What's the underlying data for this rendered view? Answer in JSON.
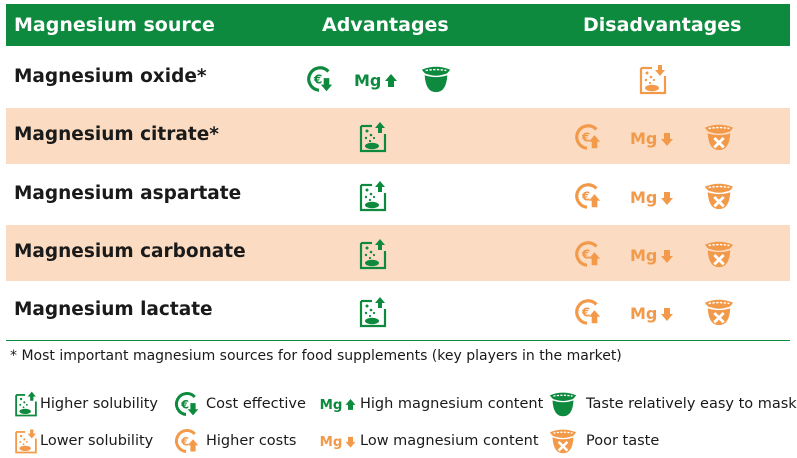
{
  "header": {
    "col_source": "Magnesium source",
    "col_advantages": "Advantages",
    "col_disadvantages": "Disadvantages"
  },
  "rows": [
    {
      "name": "Magnesium oxide*",
      "shaded": false,
      "advantages": [
        "cost-effective",
        "high-magnesium",
        "taste-easy-mask"
      ],
      "disadvantages": [
        "lower-solubility"
      ]
    },
    {
      "name": "Magnesium citrate*",
      "shaded": true,
      "advantages": [
        "higher-solubility"
      ],
      "disadvantages": [
        "higher-costs",
        "low-magnesium",
        "poor-taste"
      ]
    },
    {
      "name": "Magnesium aspartate",
      "shaded": false,
      "advantages": [
        "higher-solubility"
      ],
      "disadvantages": [
        "higher-costs",
        "low-magnesium",
        "poor-taste"
      ]
    },
    {
      "name": "Magnesium carbonate",
      "shaded": true,
      "advantages": [
        "higher-solubility"
      ],
      "disadvantages": [
        "higher-costs",
        "low-magnesium",
        "poor-taste"
      ]
    },
    {
      "name": "Magnesium lactate",
      "shaded": false,
      "advantages": [
        "higher-solubility"
      ],
      "disadvantages": [
        "higher-costs",
        "low-magnesium",
        "poor-taste"
      ]
    }
  ],
  "footnote": "* Most important magnesium sources for food supplements (key players in the market)",
  "icon_text": {
    "mg": "Mg"
  },
  "legend": {
    "higher_solubility": "Higher solubility",
    "cost_effective": "Cost effective",
    "high_magnesium": "High magnesium content",
    "taste_easy_mask": "Taste relatively easy to mask",
    "lower_solubility": "Lower solubility",
    "higher_costs": "Higher costs",
    "low_magnesium": "Low magnesium content",
    "poor_taste": "Poor taste"
  },
  "colors": {
    "green": "#0d8a3e",
    "orange": "#f39a4a",
    "shade": "#fbdcc2"
  }
}
